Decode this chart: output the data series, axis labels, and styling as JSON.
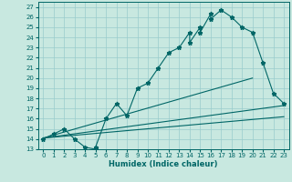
{
  "xlabel": "Humidex (Indice chaleur)",
  "bg_color": "#c8e8e0",
  "grid_color": "#99cccc",
  "line_color": "#006666",
  "xlim": [
    -0.5,
    23.5
  ],
  "ylim": [
    13,
    27.5
  ],
  "yticks": [
    13,
    14,
    15,
    16,
    17,
    18,
    19,
    20,
    21,
    22,
    23,
    24,
    25,
    26,
    27
  ],
  "xticks": [
    0,
    1,
    2,
    3,
    4,
    5,
    6,
    7,
    8,
    9,
    10,
    11,
    12,
    13,
    14,
    15,
    16,
    17,
    18,
    19,
    20,
    21,
    22,
    23
  ],
  "main_line_x": [
    0,
    1,
    2,
    3,
    4,
    5,
    5,
    6,
    7,
    8,
    9,
    10,
    11,
    12,
    13,
    14,
    14,
    15,
    15,
    16,
    16,
    17,
    18,
    19,
    20,
    21,
    22,
    23
  ],
  "main_line_y": [
    14.0,
    14.5,
    15.0,
    14.0,
    13.2,
    13.0,
    13.2,
    16.0,
    17.5,
    16.3,
    19.0,
    19.5,
    21.0,
    22.5,
    23.0,
    24.5,
    23.5,
    25.0,
    24.5,
    26.3,
    25.8,
    26.7,
    26.0,
    25.0,
    24.5,
    21.5,
    18.5,
    17.5
  ],
  "reg_line1_x": [
    0,
    23
  ],
  "reg_line1_y": [
    14.1,
    17.3
  ],
  "reg_line2_x": [
    0,
    20
  ],
  "reg_line2_y": [
    14.1,
    20.0
  ],
  "reg_line3_x": [
    0,
    23
  ],
  "reg_line3_y": [
    14.1,
    16.2
  ]
}
